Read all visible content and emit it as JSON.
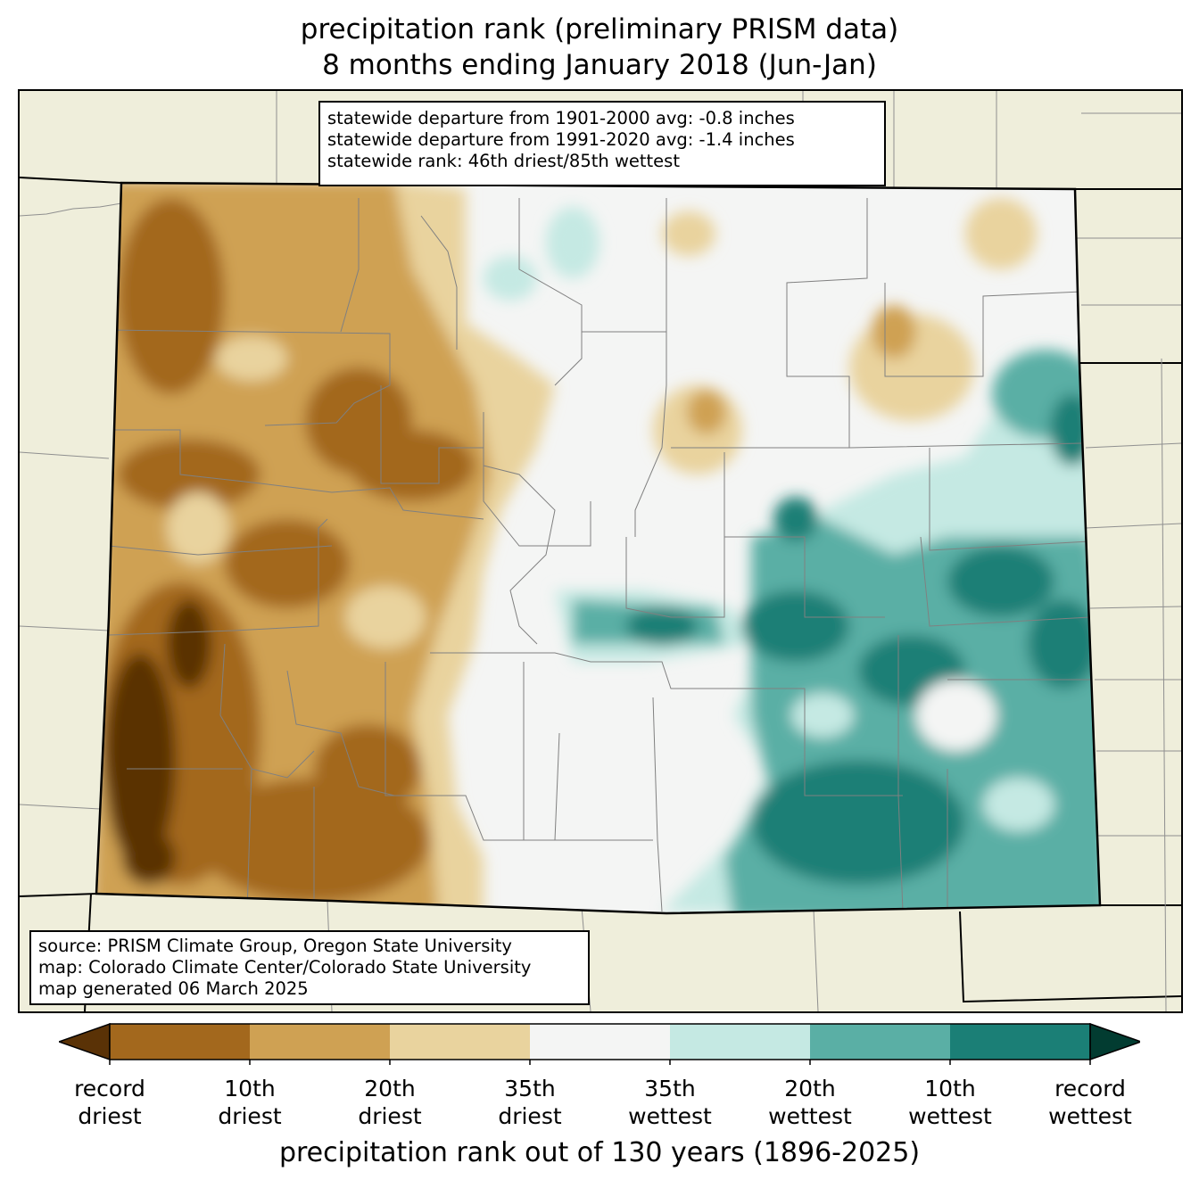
{
  "title": {
    "line1": "precipitation rank (preliminary PRISM data)",
    "line2": "8 months ending January 2018 (Jun-Jan)"
  },
  "stats": {
    "line1": "statewide departure from 1901-2000 avg: -0.8 inches",
    "line2": "statewide departure from 1991-2020 avg: -1.4 inches",
    "line3": "statewide rank: 46th driest/85th wettest"
  },
  "source": {
    "line1": "source: PRISM Climate Group, Oregon State University",
    "line2": "map: Colorado Climate Center/Colorado State University",
    "line3": "map generated 06 March 2025"
  },
  "colorbar": {
    "title": "precipitation rank out of 130 years (1896-2025)",
    "colors": [
      "#5a3206",
      "#a3681d",
      "#cfa153",
      "#e9d39e",
      "#f4f5f4",
      "#c5e9e3",
      "#5aafa5",
      "#1b7f76",
      "#023c31"
    ],
    "tick_labels": [
      {
        "line1": "record",
        "line2": "driest"
      },
      {
        "line1": "10th",
        "line2": "driest"
      },
      {
        "line1": "20th",
        "line2": "driest"
      },
      {
        "line1": "35th",
        "line2": "driest"
      },
      {
        "line1": "35th",
        "line2": "wettest"
      },
      {
        "line1": "20th",
        "line2": "wettest"
      },
      {
        "line1": "10th",
        "line2": "wettest"
      },
      {
        "line1": "record",
        "line2": "wettest"
      }
    ]
  },
  "map": {
    "land_color": "#efeedb",
    "county_line_color": "#808080",
    "state_line_color": "#000000",
    "pattern": "west of Colorado drier than normal (browns, record driest in the southwest corner); central mountains and I-25 corridor near normal; eastern plains wetter than normal (teals, 10th wettest in the southeast)"
  }
}
